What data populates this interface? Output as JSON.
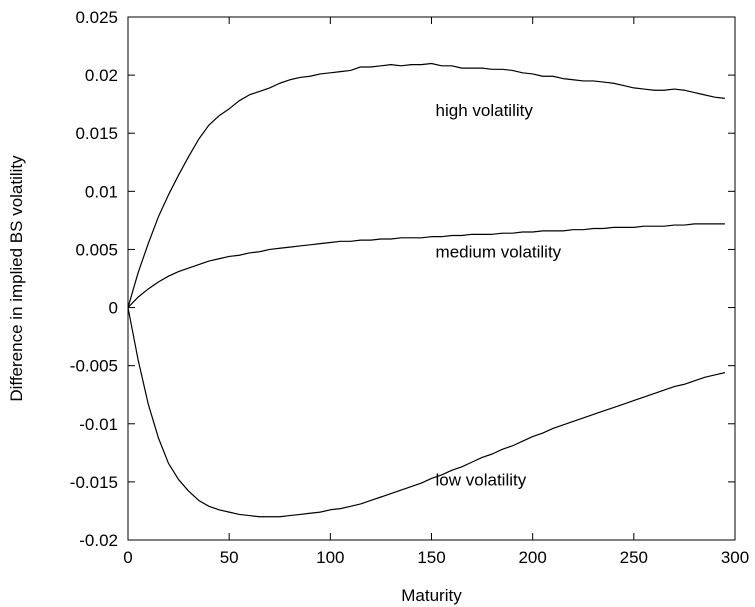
{
  "chart_data": {
    "type": "line",
    "title": "",
    "xlabel": "Maturity",
    "ylabel": "Difference in implied BS volatility",
    "xlim": [
      0,
      300
    ],
    "ylim": [
      -0.02,
      0.025
    ],
    "xticks": [
      0,
      50,
      100,
      150,
      200,
      250,
      300
    ],
    "yticks": [
      -0.02,
      -0.015,
      -0.01,
      -0.005,
      0,
      0.005,
      0.01,
      0.015,
      0.02,
      0.025
    ],
    "xtick_labels": [
      "0",
      "50",
      "100",
      "150",
      "200",
      "250",
      "300"
    ],
    "ytick_labels": [
      "-0.02",
      "-0.015",
      "-0.01",
      "-0.005",
      "0",
      "0.005",
      "0.01",
      "0.015",
      "0.02",
      "0.025"
    ],
    "grid": false,
    "line_color": "#000000",
    "series": [
      {
        "name": "high volatility",
        "x": [
          0,
          5,
          10,
          15,
          20,
          25,
          30,
          35,
          40,
          45,
          50,
          55,
          60,
          65,
          70,
          75,
          80,
          85,
          90,
          95,
          100,
          105,
          110,
          115,
          120,
          125,
          130,
          135,
          140,
          145,
          150,
          155,
          160,
          165,
          170,
          175,
          180,
          185,
          190,
          195,
          200,
          205,
          210,
          215,
          220,
          225,
          230,
          235,
          240,
          245,
          250,
          255,
          260,
          265,
          270,
          275,
          280,
          285,
          290,
          295
        ],
        "values": [
          0,
          0.003,
          0.0055,
          0.0078,
          0.0097,
          0.0114,
          0.013,
          0.0145,
          0.0157,
          0.0165,
          0.0171,
          0.0178,
          0.0183,
          0.0186,
          0.0189,
          0.0193,
          0.0196,
          0.0198,
          0.0199,
          0.0201,
          0.0202,
          0.0203,
          0.0204,
          0.0207,
          0.0207,
          0.0208,
          0.0209,
          0.0208,
          0.0209,
          0.0209,
          0.021,
          0.0208,
          0.0208,
          0.0206,
          0.0206,
          0.0206,
          0.0205,
          0.0205,
          0.0204,
          0.0202,
          0.0201,
          0.0199,
          0.0199,
          0.0197,
          0.0196,
          0.0195,
          0.0195,
          0.0194,
          0.0193,
          0.0191,
          0.0189,
          0.0188,
          0.0187,
          0.0187,
          0.0188,
          0.0187,
          0.0185,
          0.0183,
          0.0181,
          0.018
        ]
      },
      {
        "name": "medium volatility",
        "x": [
          0,
          5,
          10,
          15,
          20,
          25,
          30,
          35,
          40,
          45,
          50,
          55,
          60,
          65,
          70,
          75,
          80,
          85,
          90,
          95,
          100,
          105,
          110,
          115,
          120,
          125,
          130,
          135,
          140,
          145,
          150,
          155,
          160,
          165,
          170,
          175,
          180,
          185,
          190,
          195,
          200,
          205,
          210,
          215,
          220,
          225,
          230,
          235,
          240,
          245,
          250,
          255,
          260,
          265,
          270,
          275,
          280,
          285,
          290,
          295
        ],
        "values": [
          0,
          0.0009,
          0.0016,
          0.0022,
          0.0027,
          0.0031,
          0.0034,
          0.0037,
          0.004,
          0.0042,
          0.0044,
          0.0045,
          0.0047,
          0.0048,
          0.005,
          0.0051,
          0.0052,
          0.0053,
          0.0054,
          0.0055,
          0.0056,
          0.0057,
          0.0057,
          0.0058,
          0.0058,
          0.0059,
          0.0059,
          0.006,
          0.006,
          0.006,
          0.0061,
          0.0061,
          0.0062,
          0.0062,
          0.0063,
          0.0063,
          0.0063,
          0.0064,
          0.0064,
          0.0065,
          0.0065,
          0.0066,
          0.0066,
          0.0066,
          0.0067,
          0.0067,
          0.0068,
          0.0068,
          0.0069,
          0.0069,
          0.0069,
          0.007,
          0.007,
          0.007,
          0.0071,
          0.0071,
          0.0072,
          0.0072,
          0.0072,
          0.0072
        ]
      },
      {
        "name": "low volatility",
        "x": [
          0,
          5,
          10,
          15,
          20,
          25,
          30,
          35,
          40,
          45,
          50,
          55,
          60,
          65,
          70,
          75,
          80,
          85,
          90,
          95,
          100,
          105,
          110,
          115,
          120,
          125,
          130,
          135,
          140,
          145,
          150,
          155,
          160,
          165,
          170,
          175,
          180,
          185,
          190,
          195,
          200,
          205,
          210,
          215,
          220,
          225,
          230,
          235,
          240,
          245,
          250,
          255,
          260,
          265,
          270,
          275,
          280,
          285,
          290,
          295
        ],
        "values": [
          0,
          -0.0045,
          -0.0083,
          -0.0112,
          -0.0134,
          -0.0148,
          -0.0158,
          -0.0166,
          -0.0171,
          -0.0174,
          -0.0176,
          -0.0178,
          -0.0179,
          -0.018,
          -0.018,
          -0.018,
          -0.0179,
          -0.0178,
          -0.0177,
          -0.0176,
          -0.0174,
          -0.0173,
          -0.0171,
          -0.0169,
          -0.0166,
          -0.0163,
          -0.016,
          -0.0157,
          -0.0154,
          -0.0151,
          -0.0147,
          -0.0144,
          -0.014,
          -0.0137,
          -0.0133,
          -0.0129,
          -0.0126,
          -0.0122,
          -0.0119,
          -0.0115,
          -0.0111,
          -0.0108,
          -0.0104,
          -0.0101,
          -0.0098,
          -0.0095,
          -0.0092,
          -0.0089,
          -0.0086,
          -0.0083,
          -0.008,
          -0.0077,
          -0.0074,
          -0.0071,
          -0.0068,
          -0.0066,
          -0.0063,
          -0.006,
          -0.0058,
          -0.0056
        ]
      }
    ],
    "annotations": [
      {
        "text": "high volatility",
        "x": 152,
        "y": 0.0165
      },
      {
        "text": "medium volatility",
        "x": 152,
        "y": 0.0043
      },
      {
        "text": "low volatility",
        "x": 152,
        "y": -0.0153
      }
    ]
  }
}
